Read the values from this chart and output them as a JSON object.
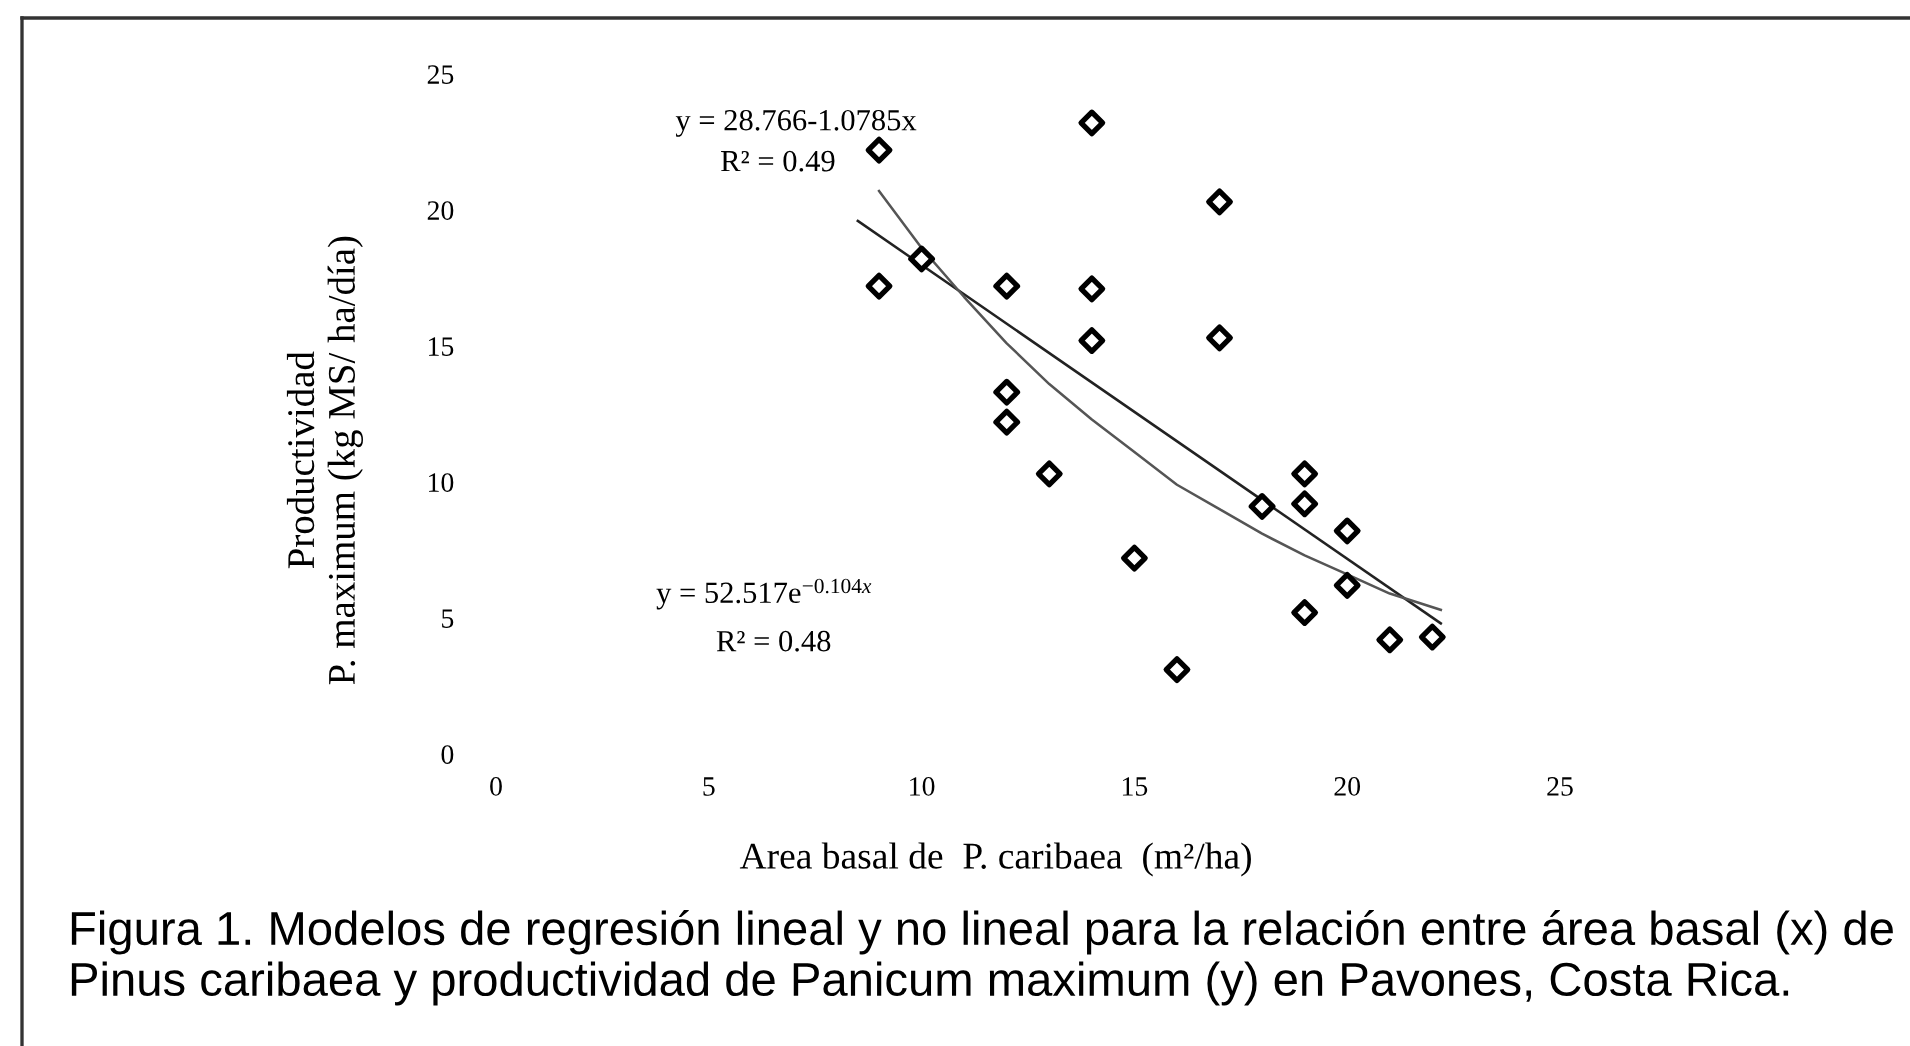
{
  "chart_data": {
    "type": "scatter",
    "xlabel": "Area basal de  P. caribaea  (m²/ha)",
    "ylabel": "Productividad\nP. maximum (kg MS/ ha/día)",
    "xlim": [
      0,
      25
    ],
    "ylim": [
      0,
      25
    ],
    "xticks": [
      0,
      5,
      10,
      15,
      20,
      25
    ],
    "yticks": [
      0,
      5,
      10,
      15,
      20,
      25
    ],
    "series": [
      {
        "marker": "diamond",
        "color": "#000000",
        "x": [
          9,
          9,
          10,
          14,
          17,
          12,
          14,
          14,
          17,
          12,
          12,
          13,
          15,
          16,
          18,
          19,
          19,
          20,
          20,
          19,
          21,
          22
        ],
        "values": [
          22.2,
          17.2,
          18.2,
          23.2,
          20.3,
          17.2,
          17.1,
          15.2,
          15.3,
          13.3,
          12.2,
          10.3,
          7.2,
          3.1,
          9.1,
          10.3,
          9.2,
          8.2,
          6.2,
          5.2,
          4.2,
          4.3
        ]
      },
      {
        "type": "line",
        "color": "#222222",
        "x": [
          8.5,
          22.2
        ],
        "values": [
          19.6,
          4.8
        ]
      },
      {
        "type": "line",
        "color": "#555555",
        "x": [
          9,
          10,
          11,
          12,
          13,
          14,
          15,
          16,
          17,
          18,
          19,
          20,
          21,
          22.2
        ],
        "values": [
          20.7,
          18.6,
          16.8,
          15.1,
          13.6,
          12.3,
          11.1,
          9.9,
          9.0,
          8.1,
          7.3,
          6.6,
          5.9,
          5.3
        ]
      }
    ],
    "annotations": [
      "y = 28.766-1.0785x",
      "R² = 0.49",
      "y = 52.517e$^{−0.104x}$",
      "R² = 0.48",
      "Figura 1. Modelos de regresión lineal y no lineal para la relación entre área basal (x) de Pinus caribaea y productividad de Panicum maximum (y) en Pavones, Costa Rica."
    ]
  }
}
